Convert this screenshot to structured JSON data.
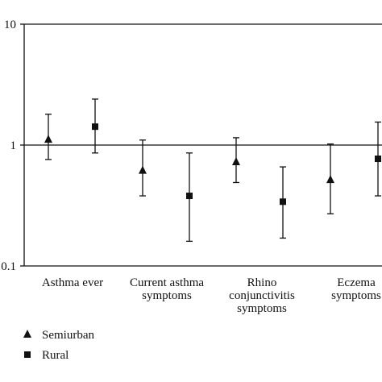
{
  "chart_data": {
    "type": "scatter",
    "title": "",
    "xlabel": "",
    "ylabel": "",
    "yscale": "log",
    "ylim": [
      0.1,
      10
    ],
    "y_ticks": [
      {
        "value": 0.1,
        "label": "0.1"
      },
      {
        "value": 1,
        "label": "1"
      },
      {
        "value": 10,
        "label": "10"
      }
    ],
    "reference_line": 1,
    "grid": false,
    "categories": [
      {
        "lines": [
          "Asthma ever"
        ]
      },
      {
        "lines": [
          "Current asthma",
          "symptoms"
        ]
      },
      {
        "lines": [
          "Rhino",
          "conjunctivitis",
          "symptoms"
        ]
      },
      {
        "lines": [
          "Eczema",
          "symptoms"
        ]
      }
    ],
    "series": [
      {
        "name": "Semiurban",
        "marker": "triangle",
        "points": [
          {
            "value": 1.12,
            "lower": 0.76,
            "upper": 1.8
          },
          {
            "value": 0.62,
            "lower": 0.38,
            "upper": 1.1
          },
          {
            "value": 0.73,
            "lower": 0.49,
            "upper": 1.15
          },
          {
            "value": 0.52,
            "lower": 0.27,
            "upper": 1.02
          }
        ]
      },
      {
        "name": "Rural",
        "marker": "square",
        "points": [
          {
            "value": 1.42,
            "lower": 0.86,
            "upper": 2.4
          },
          {
            "value": 0.38,
            "lower": 0.16,
            "upper": 0.86
          },
          {
            "value": 0.34,
            "lower": 0.17,
            "upper": 0.66
          },
          {
            "value": 0.77,
            "lower": 0.38,
            "upper": 1.55
          }
        ]
      }
    ],
    "legend_position": "bottom-left"
  }
}
